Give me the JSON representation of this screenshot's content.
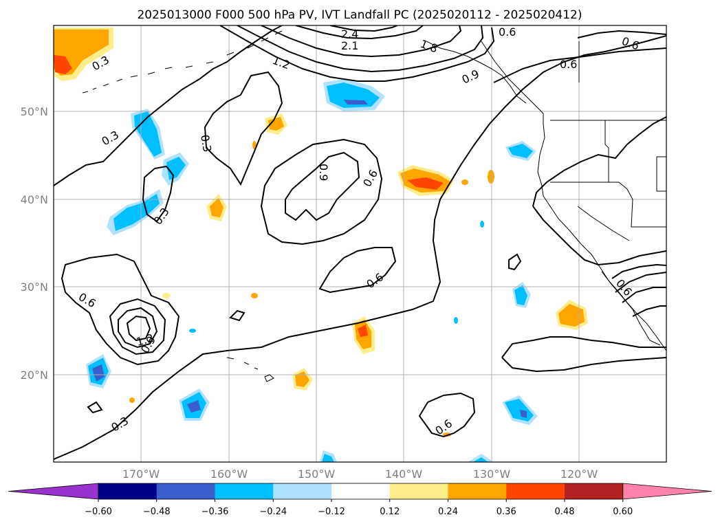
{
  "title": "2025013000 F000 500 hPa PV, IVT Landfall PC (2025020112 - 2025020412)",
  "axes": {
    "lon_labels": [
      "170°W",
      "160°W",
      "150°W",
      "140°W",
      "130°W",
      "120°W"
    ],
    "lat_labels": [
      "50°N",
      "40°N",
      "30°N",
      "20°N"
    ]
  },
  "colorbar": {
    "colors": [
      "#9932cc",
      "#00008b",
      "#3a5fcd",
      "#00bfff",
      "#b0e2ff",
      "#ffffff",
      "#ffec8b",
      "#ffa500",
      "#ff4500",
      "#b22222",
      "#ff82ab"
    ],
    "tick_labels": [
      "−0.60",
      "−0.48",
      "−0.36",
      "−0.24",
      "−0.12",
      "0.12",
      "0.24",
      "0.36",
      "0.48",
      "0.60"
    ]
  },
  "contour_labels": [
    "2.4",
    "2.1",
    "1.8",
    "1.2",
    "0.9",
    "0.6",
    "0.6",
    "0.6",
    "0.6",
    "0.6",
    "0.3",
    "0.3",
    "0.3",
    "0.3",
    "0.3",
    "0.9",
    "0.6",
    "1.2",
    "0.9",
    "0.6",
    "0.6"
  ],
  "colors": {
    "pv_contour": "#000000",
    "grid": "#b0b0b0",
    "coast": "#000000"
  }
}
